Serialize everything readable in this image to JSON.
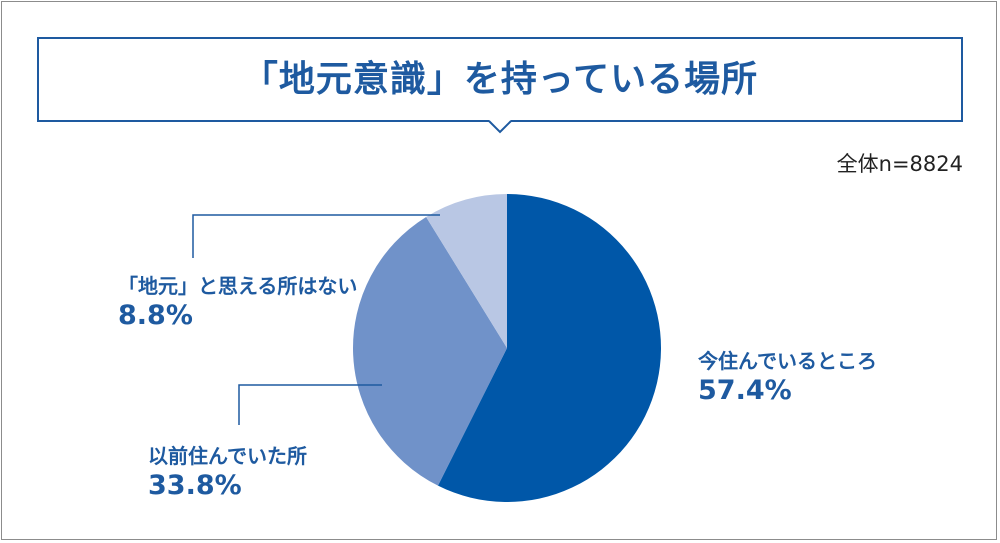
{
  "title": "「地元意識」を持っている場所",
  "sample_note": "全体n=8824",
  "colors": {
    "frame": "#8c8c8c",
    "accent": "#1e5aa0",
    "slice_current": "#0057a8",
    "slice_former": "#7092c9",
    "slice_none": "#b9c7e4"
  },
  "chart_data": {
    "type": "pie",
    "title": "「地元意識」を持っている場所",
    "note": "全体n=8824",
    "slices": [
      {
        "label": "今住んでいるところ",
        "value": 57.4,
        "value_label": "57.4%",
        "color": "#0057a8"
      },
      {
        "label": "以前住んでいた所",
        "value": 33.8,
        "value_label": "33.8%",
        "color": "#7092c9"
      },
      {
        "label": "「地元」と思える所はない",
        "value": 8.8,
        "value_label": "8.8%",
        "color": "#b9c7e4"
      }
    ],
    "start": "12 o'clock",
    "direction": "clockwise",
    "legend": "none"
  }
}
